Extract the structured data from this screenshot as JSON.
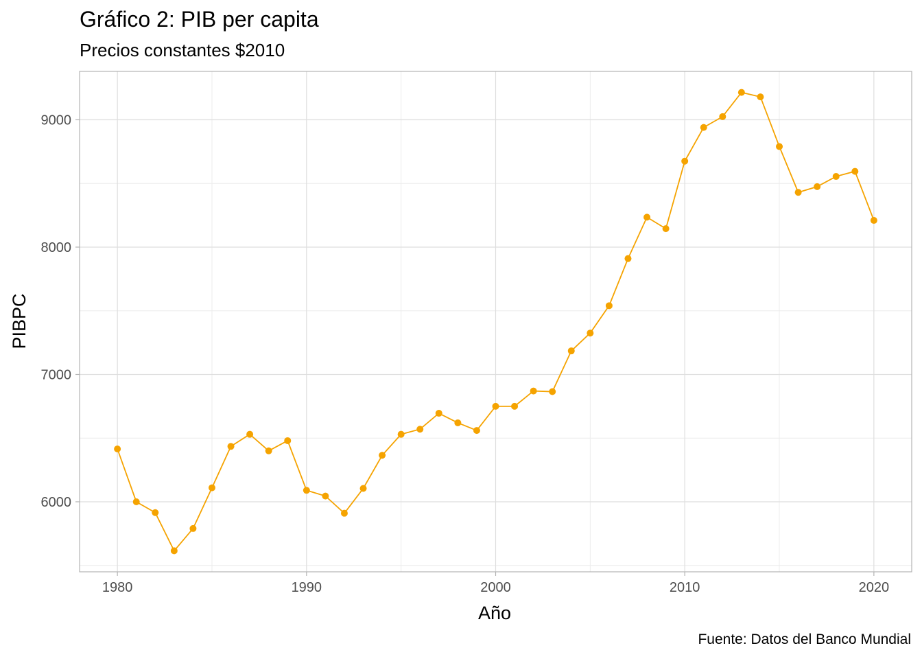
{
  "title": "Gráfico 2: PIB per capita",
  "subtitle": "Precios constantes $2010",
  "caption": "Fuente: Datos del Banco Mundial",
  "chart_data": {
    "type": "line",
    "xlabel": "Año",
    "ylabel": "PIBPC",
    "xlim": [
      1978,
      2022
    ],
    "ylim": [
      5450,
      9380
    ],
    "x_ticks": [
      1980,
      1990,
      2000,
      2010,
      2020
    ],
    "y_ticks": [
      6000,
      7000,
      8000,
      9000
    ],
    "x_tick_labels": [
      "1980",
      "1990",
      "2000",
      "2010",
      "2020"
    ],
    "y_tick_labels": [
      "6000",
      "7000",
      "8000",
      "9000"
    ],
    "grid": true,
    "color": "#f5a300",
    "x": [
      1980,
      1981,
      1982,
      1983,
      1984,
      1985,
      1986,
      1987,
      1988,
      1989,
      1990,
      1991,
      1992,
      1993,
      1994,
      1995,
      1996,
      1997,
      1998,
      1999,
      2000,
      2001,
      2002,
      2003,
      2004,
      2005,
      2006,
      2007,
      2008,
      2009,
      2010,
      2011,
      2012,
      2013,
      2014,
      2015,
      2016,
      2017,
      2018,
      2019,
      2020
    ],
    "y": [
      6415,
      6000,
      5915,
      5615,
      5790,
      6110,
      6435,
      6530,
      6400,
      6480,
      6090,
      6045,
      5910,
      6105,
      6365,
      6530,
      6570,
      6695,
      6620,
      6560,
      6750,
      6750,
      6870,
      6865,
      7185,
      7325,
      7540,
      7910,
      8235,
      8145,
      8675,
      8940,
      9025,
      9215,
      9180,
      8790,
      8430,
      8475,
      8555,
      8595,
      8210
    ]
  }
}
